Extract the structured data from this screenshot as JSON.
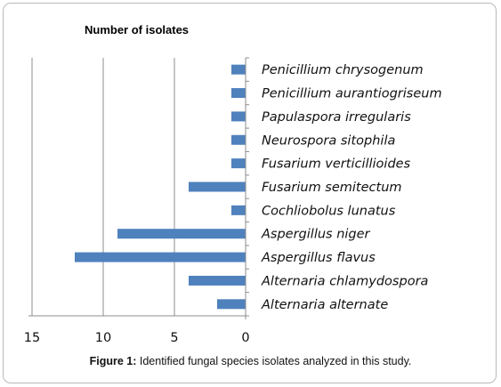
{
  "chart_data": {
    "type": "bar",
    "orientation": "horizontal",
    "x_axis_reversed": true,
    "title": "Number of isolates",
    "categories": [
      "Penicillium chrysogenum",
      "Penicillium aurantiogriseum",
      "Papulaspora irregularis",
      "Neurospora sitophila",
      "Fusarium verticillioides",
      "Fusarium semitectum",
      "Cochliobolus lunatus",
      "Aspergillus niger",
      "Aspergillus flavus",
      "Alternaria chlamydospora",
      "Alternaria alternate"
    ],
    "values": [
      1,
      1,
      1,
      1,
      1,
      4,
      1,
      9,
      12,
      4,
      2
    ],
    "xlim": [
      0,
      15
    ],
    "ticks": [
      15,
      10,
      5,
      0
    ],
    "grid": true,
    "legend": "none",
    "bar_color": "#4f81bd"
  },
  "caption": {
    "label": "Figure 1:",
    "text": "Identified fungal species isolates analyzed in this study."
  }
}
